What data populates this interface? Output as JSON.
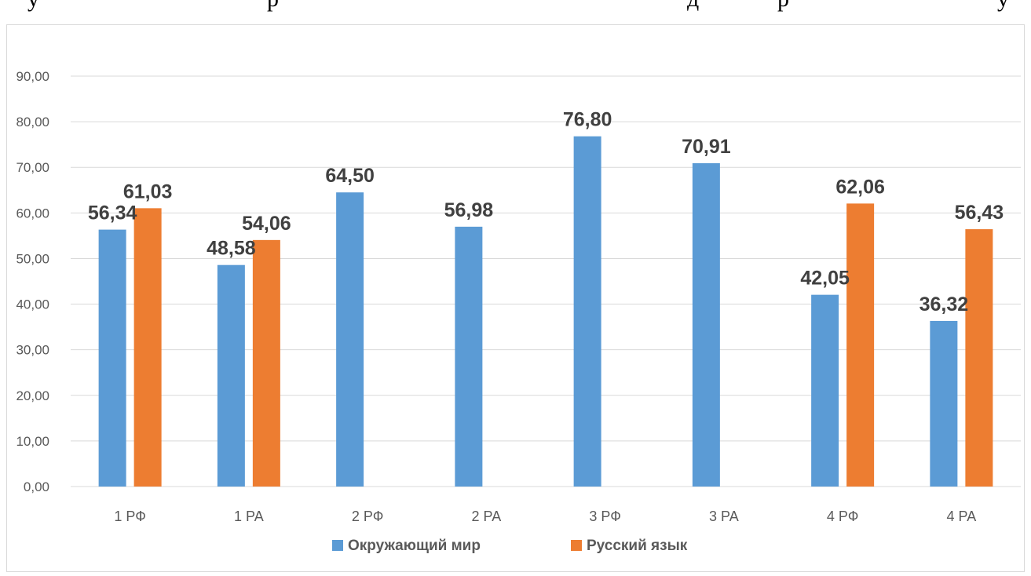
{
  "page": {
    "top_text_fragments": [
      "у",
      "р",
      "д",
      "р",
      "у"
    ]
  },
  "chart_data": {
    "type": "bar",
    "categories": [
      "1  РФ",
      "1  РА",
      "2 РФ",
      "2 РА",
      "3 РФ",
      "3 РА",
      "4 РФ",
      "4 РА"
    ],
    "series": [
      {
        "name": "Окружающий мир",
        "color": "#5B9BD5",
        "values": [
          56.34,
          48.58,
          64.5,
          56.98,
          76.8,
          70.91,
          42.05,
          36.32
        ],
        "labels": [
          "56,34",
          "48,58",
          "64,50",
          "56,98",
          "76,80",
          "70,91",
          "42,05",
          "36,32"
        ]
      },
      {
        "name": "Русский язык",
        "color": "#ED7D31",
        "values": [
          61.03,
          54.06,
          null,
          null,
          null,
          null,
          62.06,
          56.43
        ],
        "labels": [
          "61,03",
          "54,06",
          null,
          null,
          null,
          null,
          "62,06",
          "56,43"
        ]
      }
    ],
    "title": "",
    "xlabel": "",
    "ylabel": "",
    "ylim": [
      0,
      90
    ],
    "yticks": [
      "0,00",
      "10,00",
      "20,00",
      "30,00",
      "40,00",
      "50,00",
      "60,00",
      "70,00",
      "80,00",
      "90,00"
    ],
    "grid": true,
    "legend_position": "bottom"
  }
}
